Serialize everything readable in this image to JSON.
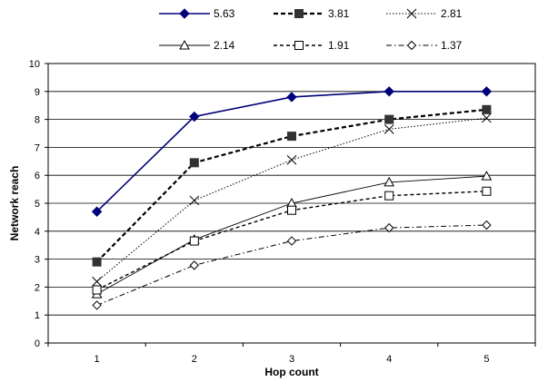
{
  "chart_data": {
    "type": "line",
    "title": "",
    "xlabel": "Hop count",
    "ylabel": "Network reach",
    "x": [
      1,
      2,
      3,
      4,
      5
    ],
    "xlim": [
      0.5,
      5.5
    ],
    "ylim": [
      0,
      10
    ],
    "yticks": [
      0,
      1,
      2,
      3,
      4,
      5,
      6,
      7,
      8,
      9,
      10
    ],
    "grid": "horizontal",
    "legend_position": "top",
    "series": [
      {
        "name": "5.63",
        "values": [
          4.7,
          8.1,
          8.8,
          9.0,
          9.0
        ],
        "color": "#00007a",
        "marker": "diamond-filled",
        "line": "solid-thick"
      },
      {
        "name": "3.81",
        "values": [
          2.9,
          6.45,
          7.4,
          8.0,
          8.35
        ],
        "color": "#000000",
        "marker": "square-filled",
        "line": "dashed-thick"
      },
      {
        "name": "2.81",
        "values": [
          2.2,
          5.1,
          6.55,
          7.65,
          8.05
        ],
        "color": "#000000",
        "marker": "x",
        "line": "dotted"
      },
      {
        "name": "2.14",
        "values": [
          1.75,
          3.7,
          5.0,
          5.75,
          5.97
        ],
        "color": "#000000",
        "marker": "triangle-open",
        "line": "solid-thin"
      },
      {
        "name": "1.91",
        "values": [
          1.9,
          3.65,
          4.75,
          5.27,
          5.43
        ],
        "color": "#000000",
        "marker": "square-open",
        "line": "dashed"
      },
      {
        "name": "1.37",
        "values": [
          1.35,
          2.78,
          3.65,
          4.12,
          4.22
        ],
        "color": "#000000",
        "marker": "diamond-open",
        "line": "dash-dot"
      }
    ]
  }
}
